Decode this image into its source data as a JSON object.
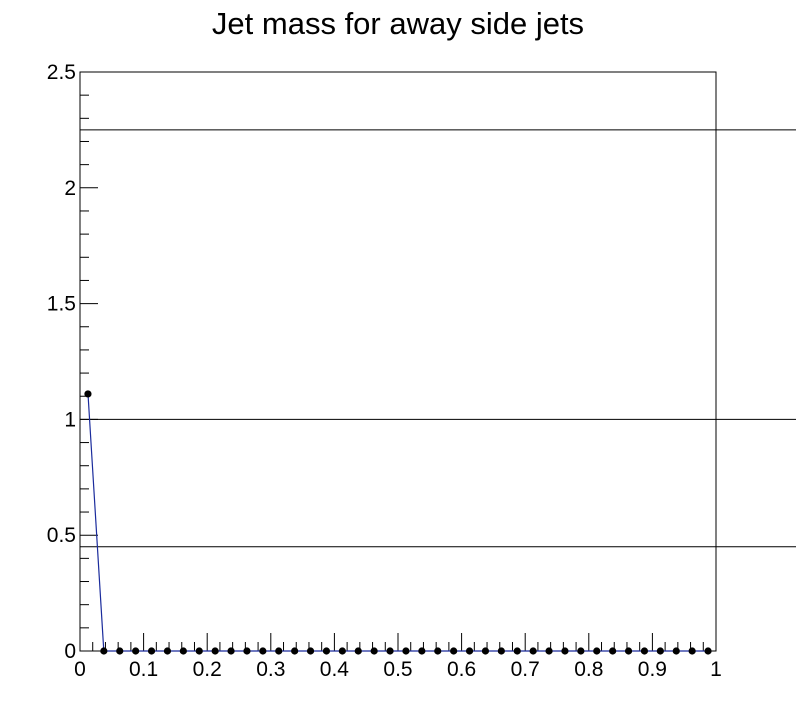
{
  "chart_data": {
    "type": "line",
    "title": "Jet mass for away side jets",
    "xlabel": "",
    "ylabel": "",
    "xlim": [
      0,
      1
    ],
    "ylim": [
      0,
      2.5
    ],
    "x_ticks": [
      "0",
      "0.1",
      "0.2",
      "0.3",
      "0.4",
      "0.5",
      "0.6",
      "0.7",
      "0.8",
      "0.9",
      "1"
    ],
    "y_ticks": [
      "0",
      "0.5",
      "1",
      "1.5",
      "2",
      "2.5"
    ],
    "reference_lines_y": [
      0.45,
      1.0,
      2.25
    ],
    "series": [
      {
        "x": [
          0.0125,
          0.0375,
          0.0625,
          0.0875,
          0.1125,
          0.1375,
          0.1625,
          0.1875,
          0.2125,
          0.2375,
          0.2625,
          0.2875,
          0.3125,
          0.3375,
          0.3625,
          0.3875,
          0.4125,
          0.4375,
          0.4625,
          0.4875,
          0.5125,
          0.5375,
          0.5625,
          0.5875,
          0.6125,
          0.6375,
          0.6625,
          0.6875,
          0.7125,
          0.7375,
          0.7625,
          0.7875,
          0.8125,
          0.8375,
          0.8625,
          0.8875,
          0.9125,
          0.9375,
          0.9625,
          0.9875
        ],
        "values": [
          1.11,
          0,
          0,
          0,
          0,
          0,
          0,
          0,
          0,
          0,
          0,
          0,
          0,
          0,
          0,
          0,
          0,
          0,
          0,
          0,
          0,
          0,
          0,
          0,
          0,
          0,
          0,
          0,
          0,
          0,
          0,
          0,
          0,
          0,
          0,
          0,
          0,
          0,
          0,
          0
        ]
      }
    ],
    "colors": {
      "line": "#1a2b9c",
      "marker": "#000000",
      "frame": "#000000"
    },
    "grid": false
  }
}
